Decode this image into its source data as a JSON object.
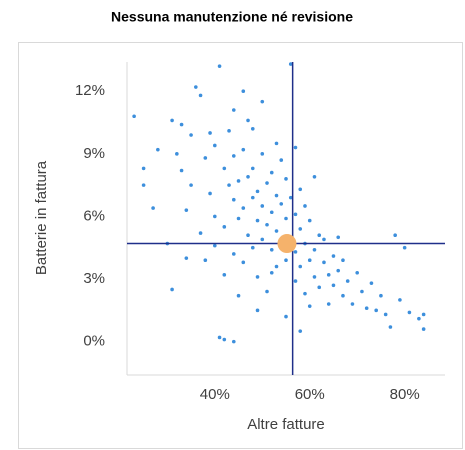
{
  "chart_data": {
    "type": "scatter",
    "title": "Nessuna manutenzione né revisione",
    "x_label": "Altre fatture",
    "y_label": "Batterie in fattura",
    "xlim": [
      21.5,
      88.5
    ],
    "ylim": [
      -1.6,
      13.4
    ],
    "xticks": [
      {
        "value": 40,
        "label": "40%"
      },
      {
        "value": 60,
        "label": "60%"
      },
      {
        "value": 80,
        "label": "80%"
      }
    ],
    "yticks": [
      {
        "value": 0,
        "label": "0%"
      },
      {
        "value": 3,
        "label": "3%"
      },
      {
        "value": 6,
        "label": "6%"
      },
      {
        "value": 9,
        "label": "9%"
      },
      {
        "value": 12,
        "label": "12%"
      }
    ],
    "points": {
      "color": "#3d8fdc",
      "x": [
        23,
        25,
        25,
        27,
        28,
        30,
        31,
        31,
        32,
        33,
        33,
        34,
        34,
        35,
        35,
        36,
        37,
        37,
        38,
        38,
        39,
        39,
        40,
        40,
        40,
        41,
        41,
        42,
        42,
        42,
        43,
        43,
        44,
        44,
        44,
        45,
        45,
        45,
        46,
        46,
        46,
        47,
        47,
        47,
        48,
        48,
        48,
        49,
        49,
        49,
        50,
        50,
        50,
        51,
        51,
        51,
        52,
        52,
        52,
        53,
        53,
        53,
        54,
        54,
        54,
        55,
        55,
        55,
        56,
        56,
        56,
        57,
        57,
        57,
        58,
        58,
        58,
        59,
        59,
        60,
        60,
        60,
        61,
        61,
        62,
        62,
        63,
        63,
        64,
        64,
        65,
        65,
        66,
        66,
        67,
        67,
        68,
        69,
        70,
        71,
        72,
        73,
        74,
        75,
        76,
        77,
        78,
        79,
        80,
        81,
        83,
        84,
        84,
        55,
        53,
        50,
        48,
        44,
        46,
        57,
        59,
        61,
        52,
        49,
        42,
        44,
        58
      ],
      "y": [
        10.8,
        7.5,
        8.3,
        6.4,
        9.2,
        4.7,
        10.6,
        2.5,
        9.0,
        8.2,
        10.4,
        6.3,
        4.0,
        9.9,
        7.5,
        12.2,
        11.8,
        5.2,
        3.9,
        8.8,
        7.1,
        10.0,
        6.0,
        4.6,
        9.4,
        13.2,
        0.2,
        8.3,
        5.5,
        3.2,
        7.5,
        10.1,
        6.8,
        4.2,
        8.9,
        5.9,
        2.2,
        7.7,
        9.2,
        6.4,
        3.8,
        7.9,
        5.1,
        10.6,
        6.9,
        4.5,
        8.3,
        5.8,
        7.2,
        3.1,
        6.5,
        9.0,
        4.9,
        7.6,
        5.6,
        2.4,
        6.2,
        8.1,
        4.4,
        7.0,
        5.3,
        3.6,
        6.6,
        4.8,
        8.7,
        5.9,
        3.9,
        1.2,
        6.9,
        5.0,
        13.3,
        4.3,
        6.1,
        2.9,
        5.4,
        3.6,
        7.3,
        4.7,
        2.3,
        5.8,
        3.9,
        1.7,
        4.4,
        3.1,
        5.1,
        2.6,
        3.8,
        4.9,
        3.2,
        1.8,
        4.1,
        2.7,
        3.4,
        5.0,
        2.2,
        3.9,
        2.9,
        1.8,
        3.3,
        2.4,
        1.6,
        2.8,
        1.5,
        2.2,
        1.3,
        0.7,
        5.1,
        2.0,
        4.5,
        1.4,
        1.1,
        1.3,
        0.6,
        7.8,
        9.5,
        11.5,
        10.2,
        11.1,
        12.0,
        9.3,
        6.5,
        7.9,
        3.3,
        1.5,
        0.1,
        0.0,
        0.5
      ]
    },
    "highlight": {
      "x": 55.2,
      "y": 4.7,
      "color": "#f5b26b"
    },
    "reference_lines": {
      "x": 56.4,
      "y": 4.7,
      "color": "#1f2f8a"
    }
  }
}
